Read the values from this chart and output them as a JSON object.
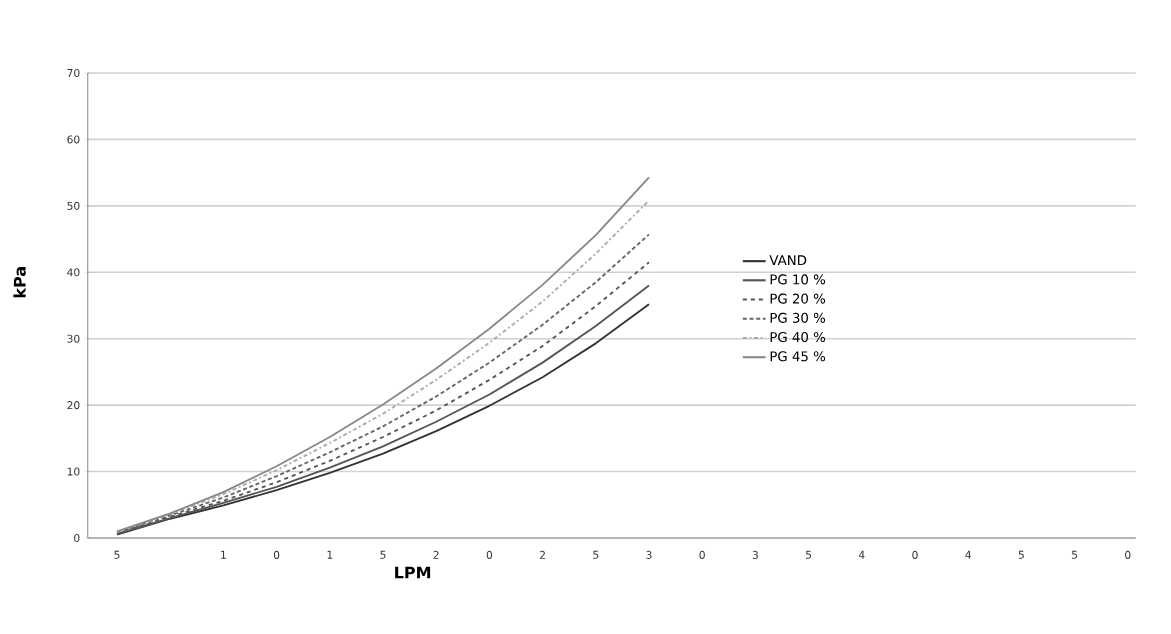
{
  "chart_data": {
    "type": "line",
    "xlabel": "LPM",
    "ylabel": "kPa",
    "categories": [
      "5",
      null,
      "1",
      "0",
      "1",
      "5",
      "2",
      "0",
      "2",
      "5",
      "3",
      "0",
      "3",
      "5",
      "4",
      "0",
      "4",
      "5",
      "5",
      "0"
    ],
    "ylim": [
      0,
      70
    ],
    "yticks": [
      0,
      10,
      20,
      30,
      40,
      50,
      60,
      70
    ],
    "grid": "y",
    "legend": "right",
    "series": [
      {
        "name": "VAND",
        "color": "#333333",
        "line_style": "solid",
        "values": [
          0.5,
          2.9,
          4.9,
          7.2,
          9.8,
          12.7,
          16.1,
          19.9,
          24.2,
          29.3,
          35.2,
          null,
          null,
          null,
          null,
          null,
          null,
          null,
          null,
          null
        ]
      },
      {
        "name": "PG 10 %",
        "color": "#555555",
        "line_style": "solid",
        "values": [
          0.6,
          3.0,
          5.3,
          7.7,
          10.6,
          13.8,
          17.5,
          21.6,
          26.4,
          31.9,
          38.0,
          null,
          null,
          null,
          null,
          null,
          null,
          null,
          null,
          null
        ]
      },
      {
        "name": "PG 20 %",
        "color": "#555555",
        "line_style": "dashed",
        "values": [
          0.7,
          3.2,
          5.6,
          8.4,
          11.6,
          15.2,
          19.2,
          23.8,
          28.9,
          34.9,
          41.5,
          null,
          null,
          null,
          null,
          null,
          null,
          null,
          null,
          null
        ]
      },
      {
        "name": "PG 30 %",
        "color": "#666666",
        "line_style": "dotted",
        "values": [
          0.8,
          3.4,
          6.1,
          9.3,
          12.9,
          16.8,
          21.3,
          26.4,
          32.1,
          38.5,
          45.7,
          null,
          null,
          null,
          null,
          null,
          null,
          null,
          null,
          null
        ]
      },
      {
        "name": "PG 40 %",
        "color": "#aaaaaa",
        "line_style": "dashdot",
        "values": [
          0.9,
          3.6,
          6.6,
          10.2,
          14.3,
          18.7,
          23.8,
          29.4,
          35.6,
          42.8,
          50.8,
          null,
          null,
          null,
          null,
          null,
          null,
          null,
          null,
          null
        ]
      },
      {
        "name": "PG 45 %",
        "color": "#888888",
        "line_style": "solid",
        "values": [
          1,
          3.7,
          6.9,
          10.8,
          15.2,
          20.1,
          25.5,
          31.5,
          38.1,
          45.6,
          54.3,
          null,
          null,
          null,
          null,
          null,
          null,
          null,
          null,
          null
        ]
      }
    ]
  }
}
